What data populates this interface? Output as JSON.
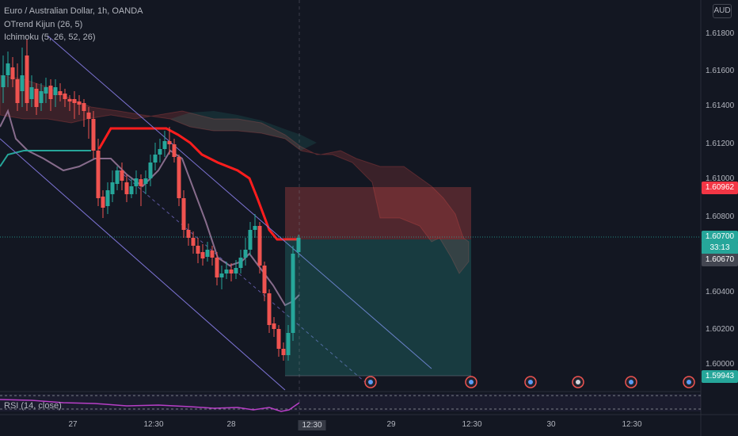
{
  "header": {
    "symbol_line": "Euro / Australian Dollar, 1h, OANDA",
    "indicator_1": "OTrend Kijun (26, 5)",
    "indicator_2": "Ichimoku (5, 26, 52, 26)",
    "rsi_label": "RSI (14, close)",
    "currency": "AUD"
  },
  "price_axis": {
    "ticks": [
      "1.61800",
      "1.61600",
      "1.61400",
      "1.61200",
      "1.61000",
      "1.60800",
      "1.60400",
      "1.60200",
      "1.60000"
    ],
    "last_price": "1.60700",
    "countdown": "33:13",
    "tag_upper": "1.60962",
    "tag_lower": "1.60670",
    "tag_bottom": "1.59943"
  },
  "time_axis": {
    "ticks": [
      "27",
      "12:30",
      "28",
      "12:30",
      "29",
      "12:30",
      "30",
      "12:30"
    ],
    "crosshair_label": "12:30"
  },
  "colors": {
    "background": "#131722",
    "bull": "#26a69a",
    "bear": "#ef5350",
    "kijun": "#ff1d1d",
    "channel": "#7e74d6",
    "rsi": "#b83fc7"
  },
  "icons": [
    "event-flag-icon",
    "event-flag-icon",
    "event-flag-icon",
    "event-flag-icon",
    "event-flag-icon",
    "event-flag-icon"
  ]
}
